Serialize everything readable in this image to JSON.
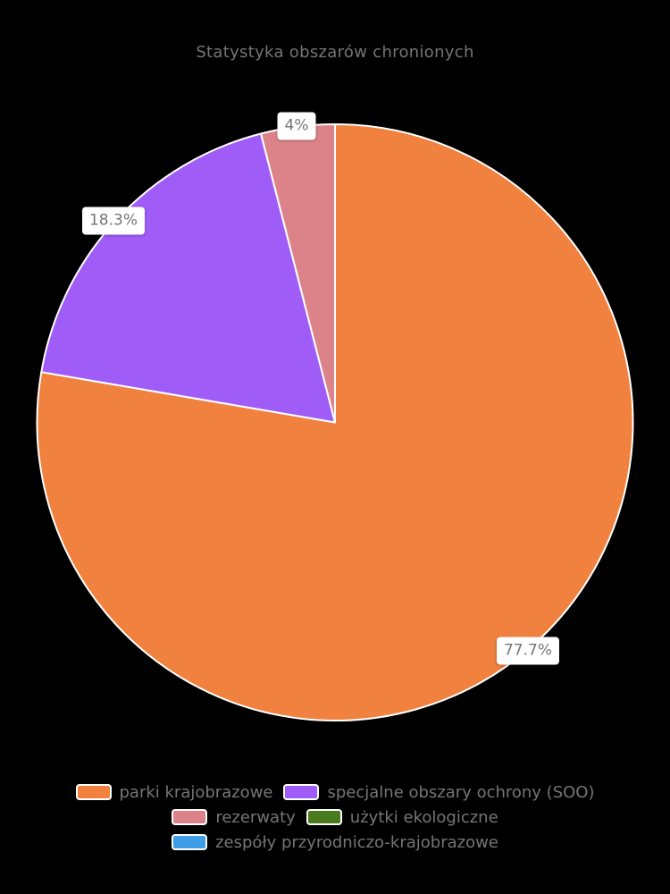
{
  "chart_title": "Statystyka obszarów chronionych",
  "chart_data": {
    "type": "pie",
    "title": "Statystyka obszarów chronionych",
    "labels": [
      "parki krajobrazowe",
      "specjalne obszary ochrony (SOO)",
      "rezerwaty",
      "użytki ekologiczne",
      "zespóły przyrodniczo-krajobrazowe"
    ],
    "values_percent": [
      77.7,
      18.3,
      4.0,
      0.0,
      0.0
    ],
    "displayed_percent_labels": [
      "77.7%",
      "18.3%",
      "4%"
    ],
    "colors": [
      "#F0813F",
      "#A05CF7",
      "#DC838A",
      "#4A7A1E",
      "#3E9FE8"
    ],
    "slice_border_color": "#ffffff",
    "start_angle_deg": 0,
    "direction": "clockwise",
    "legend_position": "bottom",
    "background_color": "#000000",
    "text_color": "#757575",
    "label_box_color": "#ffffff"
  }
}
